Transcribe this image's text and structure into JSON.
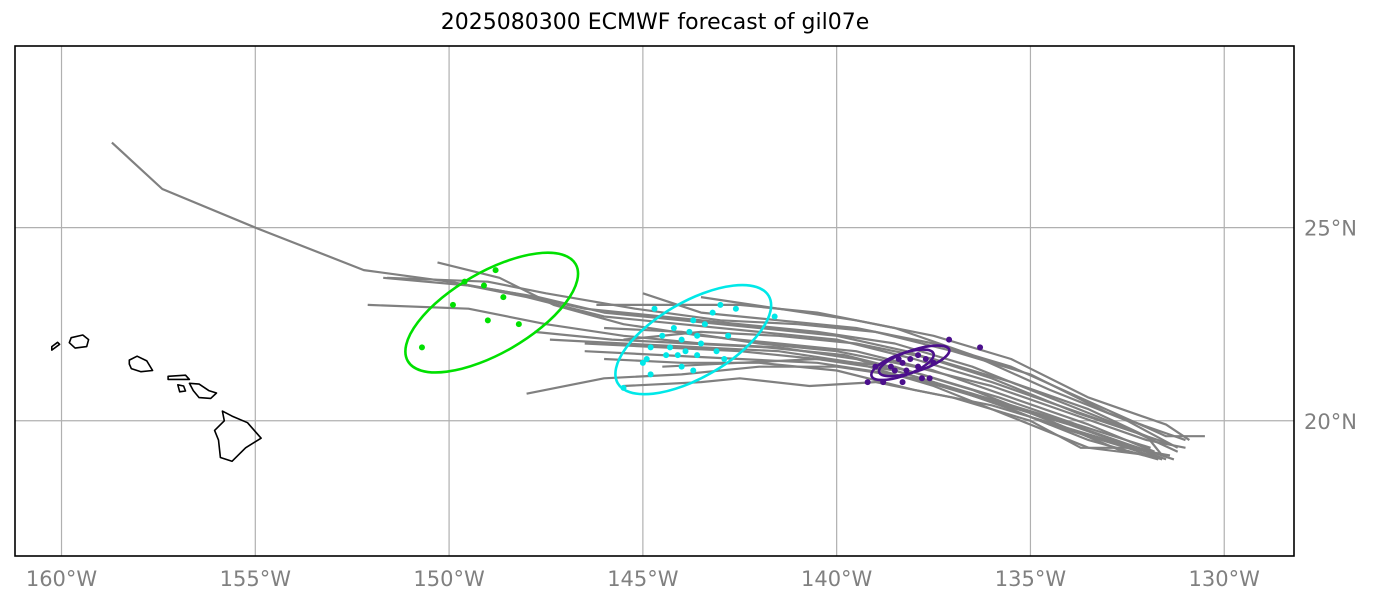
{
  "title": "2025080300 ECMWF forecast of gil07e",
  "chart_data": {
    "type": "map",
    "title": "2025080300 ECMWF forecast of gil07e",
    "projection": "PlateCarree",
    "xlim": [
      -161.2,
      -128.2
    ],
    "ylim": [
      16.5,
      29.7
    ],
    "gridlines": true,
    "x_ticks": [
      -160,
      -155,
      -150,
      -145,
      -140,
      -135,
      -130
    ],
    "x_tick_labels": [
      "160°W",
      "155°W",
      "150°W",
      "145°W",
      "140°W",
      "135°W",
      "130°W"
    ],
    "y_ticks": [
      20,
      25
    ],
    "y_tick_labels": [
      "20°N",
      "25°N"
    ],
    "colors": {
      "tracks": "#808080",
      "group_1": "#00e000",
      "group_2": "#00e8e8",
      "group_3": "#4b0f8c",
      "coast": "#000000",
      "grid": "#b0b0b0",
      "frame": "#000000"
    },
    "islands": [
      [
        [
          -160.25,
          21.83
        ],
        [
          -160.05,
          21.98
        ],
        [
          -160.1,
          22.03
        ],
        [
          -160.25,
          21.92
        ]
      ],
      [
        [
          -159.75,
          22.15
        ],
        [
          -159.45,
          22.22
        ],
        [
          -159.3,
          22.1
        ],
        [
          -159.35,
          21.92
        ],
        [
          -159.65,
          21.88
        ],
        [
          -159.8,
          22.02
        ]
      ],
      [
        [
          -158.25,
          21.57
        ],
        [
          -158.05,
          21.67
        ],
        [
          -157.8,
          21.55
        ],
        [
          -157.65,
          21.3
        ],
        [
          -157.95,
          21.27
        ],
        [
          -158.2,
          21.35
        ],
        [
          -158.25,
          21.47
        ]
      ],
      [
        [
          -157.25,
          21.15
        ],
        [
          -156.8,
          21.18
        ],
        [
          -156.7,
          21.07
        ],
        [
          -157.25,
          21.07
        ]
      ],
      [
        [
          -157.0,
          20.93
        ],
        [
          -156.85,
          20.9
        ],
        [
          -156.8,
          20.77
        ],
        [
          -156.95,
          20.75
        ]
      ],
      [
        [
          -156.7,
          20.97
        ],
        [
          -156.45,
          20.95
        ],
        [
          -156.2,
          20.78
        ],
        [
          -156.0,
          20.72
        ],
        [
          -156.15,
          20.58
        ],
        [
          -156.45,
          20.6
        ],
        [
          -156.6,
          20.78
        ]
      ],
      [
        [
          -155.85,
          20.25
        ],
        [
          -155.6,
          20.12
        ],
        [
          -155.2,
          19.95
        ],
        [
          -154.85,
          19.55
        ],
        [
          -155.25,
          19.3
        ],
        [
          -155.6,
          18.95
        ],
        [
          -155.9,
          19.05
        ],
        [
          -155.95,
          19.5
        ],
        [
          -156.05,
          19.75
        ],
        [
          -155.8,
          20.0
        ]
      ]
    ],
    "tracks": [
      [
        [
          -158.7,
          27.2
        ],
        [
          -157.4,
          26.0
        ],
        [
          -155.0,
          25.0
        ],
        [
          -152.2,
          23.9
        ],
        [
          -150.0,
          23.6
        ],
        [
          -148.0,
          23.2
        ],
        [
          -146.0,
          22.7
        ],
        [
          -144.0,
          22.5
        ],
        [
          -142.0,
          22.3
        ],
        [
          -140.0,
          22.1
        ],
        [
          -138.0,
          21.6
        ],
        [
          -136.0,
          21.0
        ],
        [
          -134.0,
          20.3
        ],
        [
          -132.0,
          19.6
        ],
        [
          -131.6,
          19.1
        ]
      ],
      [
        [
          -150.3,
          24.1
        ],
        [
          -148.7,
          23.7
        ],
        [
          -147.3,
          23.0
        ],
        [
          -145.5,
          22.5
        ],
        [
          -143.5,
          22.2
        ],
        [
          -141.5,
          22.0
        ],
        [
          -139.5,
          21.8
        ],
        [
          -137.5,
          21.3
        ],
        [
          -135.5,
          20.6
        ],
        [
          -133.5,
          19.9
        ],
        [
          -131.8,
          19.2
        ]
      ],
      [
        [
          -151.7,
          23.7
        ],
        [
          -149.5,
          23.5
        ],
        [
          -147.7,
          23.2
        ],
        [
          -146.0,
          22.8
        ],
        [
          -144.0,
          22.6
        ],
        [
          -142.0,
          22.4
        ],
        [
          -140.0,
          22.2
        ],
        [
          -138.2,
          21.8
        ],
        [
          -136.0,
          21.1
        ],
        [
          -133.8,
          20.2
        ],
        [
          -131.4,
          19.4
        ]
      ],
      [
        [
          -151.6,
          23.7
        ],
        [
          -149.0,
          23.6
        ],
        [
          -147.5,
          23.3
        ],
        [
          -145.2,
          22.9
        ],
        [
          -143.0,
          22.6
        ],
        [
          -141.0,
          22.5
        ],
        [
          -139.0,
          22.3
        ],
        [
          -137.0,
          21.8
        ],
        [
          -135.0,
          21.2
        ],
        [
          -133.0,
          20.2
        ],
        [
          -131.0,
          19.5
        ]
      ],
      [
        [
          -150.0,
          23.6
        ],
        [
          -148.3,
          23.3
        ],
        [
          -146.5,
          22.9
        ],
        [
          -144.5,
          22.7
        ],
        [
          -142.5,
          22.5
        ],
        [
          -140.5,
          22.3
        ],
        [
          -138.5,
          22.0
        ],
        [
          -136.5,
          21.4
        ],
        [
          -134.5,
          20.6
        ],
        [
          -132.5,
          19.8
        ],
        [
          -131.2,
          19.2
        ]
      ],
      [
        [
          -152.1,
          23.0
        ],
        [
          -149.5,
          22.9
        ],
        [
          -147.5,
          22.5
        ],
        [
          -145.5,
          22.2
        ],
        [
          -143.5,
          22.0
        ],
        [
          -141.5,
          21.9
        ],
        [
          -139.5,
          21.6
        ],
        [
          -137.5,
          21.0
        ],
        [
          -135.5,
          20.3
        ],
        [
          -133.5,
          19.5
        ],
        [
          -131.7,
          19.0
        ]
      ],
      [
        [
          -147.4,
          22.1
        ],
        [
          -145.5,
          22.0
        ],
        [
          -143.5,
          21.9
        ],
        [
          -141.5,
          21.8
        ],
        [
          -139.5,
          21.5
        ],
        [
          -137.5,
          20.9
        ],
        [
          -135.5,
          20.1
        ],
        [
          -133.5,
          19.3
        ],
        [
          -131.9,
          19.1
        ]
      ],
      [
        [
          -148.0,
          20.7
        ],
        [
          -146.0,
          21.1
        ],
        [
          -144.0,
          21.2
        ],
        [
          -142.0,
          21.4
        ],
        [
          -140.0,
          21.4
        ],
        [
          -138.0,
          21.1
        ],
        [
          -136.0,
          20.5
        ],
        [
          -134.0,
          19.9
        ],
        [
          -132.3,
          19.3
        ],
        [
          -131.5,
          19.0
        ]
      ],
      [
        [
          -145.5,
          20.9
        ],
        [
          -143.5,
          21.0
        ],
        [
          -142.5,
          21.1
        ],
        [
          -140.7,
          20.9
        ],
        [
          -139.0,
          21.0
        ],
        [
          -137.0,
          20.6
        ],
        [
          -135.0,
          20.0
        ],
        [
          -133.7,
          19.3
        ],
        [
          -132.5,
          19.3
        ],
        [
          -131.4,
          19.1
        ]
      ],
      [
        [
          -146.5,
          21.8
        ],
        [
          -144.5,
          21.7
        ],
        [
          -142.5,
          21.6
        ],
        [
          -140.5,
          21.5
        ],
        [
          -138.5,
          21.2
        ],
        [
          -136.5,
          20.7
        ],
        [
          -134.5,
          20.1
        ],
        [
          -132.5,
          19.4
        ],
        [
          -131.3,
          19.0
        ]
      ],
      [
        [
          -146.5,
          22.0
        ],
        [
          -144.5,
          21.9
        ],
        [
          -142.5,
          21.8
        ],
        [
          -140.5,
          21.6
        ],
        [
          -138.5,
          21.4
        ],
        [
          -136.5,
          20.8
        ],
        [
          -134.5,
          20.0
        ],
        [
          -132.6,
          19.2
        ],
        [
          -131.8,
          19.1
        ]
      ],
      [
        [
          -145.0,
          23.3
        ],
        [
          -143.5,
          22.8
        ],
        [
          -141.5,
          22.6
        ],
        [
          -139.5,
          22.4
        ],
        [
          -137.5,
          22.0
        ],
        [
          -135.5,
          21.4
        ],
        [
          -133.5,
          20.5
        ],
        [
          -131.5,
          19.6
        ],
        [
          -130.5,
          19.6
        ]
      ],
      [
        [
          -143.5,
          23.2
        ],
        [
          -141.5,
          22.9
        ],
        [
          -139.5,
          22.6
        ],
        [
          -137.5,
          22.2
        ],
        [
          -135.5,
          21.6
        ],
        [
          -133.5,
          20.6
        ],
        [
          -131.5,
          19.9
        ],
        [
          -130.9,
          19.5
        ]
      ],
      [
        [
          -146.2,
          23.0
        ],
        [
          -144.0,
          23.0
        ],
        [
          -142.5,
          23.0
        ],
        [
          -140.5,
          22.8
        ],
        [
          -138.5,
          22.4
        ],
        [
          -136.5,
          21.7
        ],
        [
          -134.5,
          20.8
        ],
        [
          -132.5,
          20.0
        ],
        [
          -131.2,
          19.3
        ]
      ],
      [
        [
          -145.5,
          22.1
        ],
        [
          -143.5,
          22.3
        ],
        [
          -141.5,
          22.2
        ],
        [
          -139.5,
          22.0
        ],
        [
          -137.5,
          21.6
        ],
        [
          -135.5,
          21.0
        ],
        [
          -133.5,
          20.3
        ],
        [
          -131.8,
          19.5
        ]
      ],
      [
        [
          -146.0,
          22.4
        ],
        [
          -144.0,
          22.3
        ],
        [
          -142.0,
          22.0
        ],
        [
          -140.0,
          21.8
        ],
        [
          -138.0,
          21.4
        ],
        [
          -136.0,
          20.9
        ],
        [
          -134.0,
          20.2
        ],
        [
          -132.0,
          19.5
        ],
        [
          -131.0,
          19.3
        ]
      ],
      [
        [
          -146.0,
          21.6
        ],
        [
          -144.0,
          21.5
        ],
        [
          -142.0,
          21.5
        ],
        [
          -140.0,
          21.3
        ],
        [
          -138.0,
          20.8
        ],
        [
          -136.0,
          20.4
        ],
        [
          -134.0,
          19.8
        ],
        [
          -132.0,
          19.2
        ]
      ],
      [
        [
          -147.8,
          22.3
        ],
        [
          -145.8,
          22.1
        ],
        [
          -143.8,
          22.0
        ],
        [
          -141.8,
          21.9
        ],
        [
          -139.8,
          21.7
        ],
        [
          -137.8,
          21.2
        ],
        [
          -135.8,
          20.6
        ],
        [
          -133.8,
          19.9
        ],
        [
          -131.9,
          19.3
        ]
      ],
      [
        [
          -144.5,
          21.4
        ],
        [
          -142.5,
          21.5
        ],
        [
          -140.5,
          21.6
        ],
        [
          -138.5,
          21.3
        ],
        [
          -136.5,
          20.7
        ],
        [
          -134.5,
          19.9
        ],
        [
          -132.5,
          19.3
        ],
        [
          -131.6,
          19.0
        ]
      ]
    ],
    "groups": [
      {
        "color": "#00e000",
        "ellipse": {
          "center": [
            -148.9,
            22.8
          ],
          "semi_axes": [
            2.5,
            1.05
          ],
          "angle_deg": 30
        },
        "points": [
          [
            -148.8,
            23.9
          ],
          [
            -149.6,
            23.6
          ],
          [
            -149.1,
            23.5
          ],
          [
            -148.6,
            23.2
          ],
          [
            -149.9,
            23.0
          ],
          [
            -148.2,
            22.5
          ],
          [
            -149.0,
            22.6
          ],
          [
            -150.7,
            21.9
          ]
        ]
      },
      {
        "color": "#00e8e8",
        "ellipse": {
          "center": [
            -143.7,
            22.1
          ],
          "semi_axes": [
            2.25,
            0.98
          ],
          "angle_deg": 30
        },
        "points": [
          [
            -144.7,
            22.9
          ],
          [
            -143.0,
            23.0
          ],
          [
            -142.6,
            22.9
          ],
          [
            -143.2,
            22.8
          ],
          [
            -141.6,
            22.7
          ],
          [
            -143.7,
            22.6
          ],
          [
            -143.4,
            22.5
          ],
          [
            -144.2,
            22.4
          ],
          [
            -143.8,
            22.3
          ],
          [
            -142.8,
            22.2
          ],
          [
            -143.6,
            22.2
          ],
          [
            -144.5,
            22.2
          ],
          [
            -144.0,
            22.1
          ],
          [
            -143.5,
            22.0
          ],
          [
            -144.3,
            21.9
          ],
          [
            -144.8,
            21.9
          ],
          [
            -143.9,
            21.8
          ],
          [
            -143.1,
            21.8
          ],
          [
            -144.4,
            21.7
          ],
          [
            -144.1,
            21.7
          ],
          [
            -143.6,
            21.7
          ],
          [
            -142.9,
            21.6
          ],
          [
            -144.9,
            21.6
          ],
          [
            -145.0,
            21.5
          ],
          [
            -144.0,
            21.4
          ],
          [
            -143.7,
            21.3
          ],
          [
            -144.8,
            21.2
          ],
          [
            -145.5,
            20.85
          ]
        ]
      },
      {
        "color": "#4b0f8c",
        "ellipse": {
          "center": [
            -138.3,
            21.45
          ],
          "semi_axes": [
            0.85,
            0.28
          ],
          "angle_deg": 20
        },
        "ellipse_inner": {
          "center": [
            -138.0,
            21.55
          ],
          "semi_axes": [
            0.95,
            0.28
          ],
          "angle_deg": 18
        },
        "points": [
          [
            -137.1,
            22.1
          ],
          [
            -136.3,
            21.9
          ],
          [
            -137.9,
            21.7
          ],
          [
            -138.4,
            21.6
          ],
          [
            -138.1,
            21.6
          ],
          [
            -137.7,
            21.6
          ],
          [
            -138.3,
            21.5
          ],
          [
            -137.5,
            21.5
          ],
          [
            -138.6,
            21.4
          ],
          [
            -139.0,
            21.4
          ],
          [
            -137.9,
            21.4
          ],
          [
            -138.2,
            21.3
          ],
          [
            -138.5,
            21.3
          ],
          [
            -137.8,
            21.1
          ],
          [
            -138.3,
            21.0
          ],
          [
            -138.8,
            21.0
          ],
          [
            -139.2,
            21.0
          ],
          [
            -137.6,
            21.1
          ]
        ]
      }
    ]
  }
}
